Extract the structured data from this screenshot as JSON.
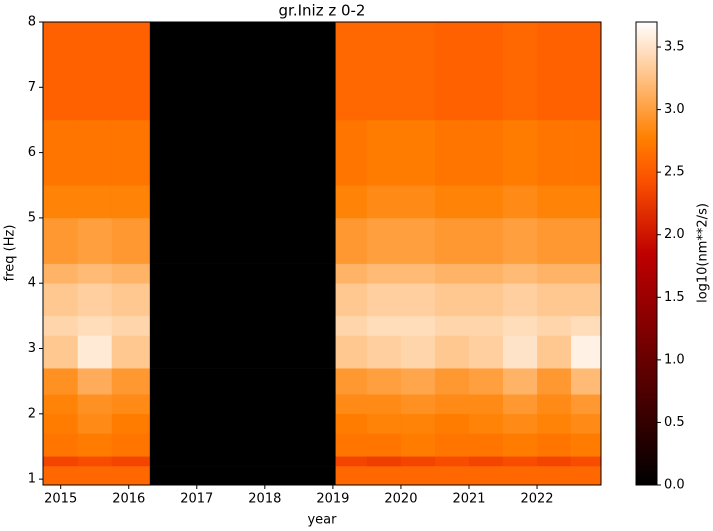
{
  "chart_data": {
    "type": "heatmap",
    "title": "gr.Iniz z 0-2",
    "x_label": "year",
    "y_label": "freq (Hz)",
    "colorbar_label": "log10(nm**2/s)",
    "colormap": "gist_heat",
    "x_edges": [
      2014.74,
      2015.25,
      2015.75,
      2016.31,
      2019.04,
      2019.5,
      2020,
      2020.5,
      2021,
      2021.5,
      2022,
      2022.5,
      2022.94
    ],
    "y_edges": [
      0.91,
      1.2,
      1.35,
      1.7,
      2.0,
      2.3,
      2.7,
      3.2,
      3.5,
      4.0,
      4.3,
      5.0,
      5.5,
      6.5,
      8
    ],
    "values": [
      [
        2.6,
        2.6,
        2.6,
        0,
        2.6,
        2.6,
        2.6,
        2.6,
        2.6,
        2.6,
        2.6,
        2.6
      ],
      [
        2.35,
        2.4,
        2.35,
        0,
        2.35,
        2.3,
        2.35,
        2.4,
        2.35,
        2.4,
        2.35,
        2.4
      ],
      [
        2.7,
        2.75,
        2.7,
        0,
        2.7,
        2.7,
        2.75,
        2.7,
        2.7,
        2.75,
        2.7,
        2.75
      ],
      [
        2.75,
        2.85,
        2.75,
        0,
        2.75,
        2.8,
        2.8,
        2.75,
        2.8,
        2.85,
        2.8,
        2.85
      ],
      [
        2.8,
        2.9,
        2.85,
        0,
        2.85,
        2.85,
        2.9,
        2.85,
        2.85,
        2.95,
        2.85,
        2.95
      ],
      [
        2.9,
        3.1,
        2.95,
        0,
        2.95,
        3.0,
        3.05,
        2.95,
        3.0,
        3.15,
        2.95,
        3.2
      ],
      [
        3.3,
        3.55,
        3.3,
        0,
        3.3,
        3.35,
        3.4,
        3.3,
        3.35,
        3.5,
        3.3,
        3.6
      ],
      [
        3.4,
        3.45,
        3.4,
        0,
        3.4,
        3.45,
        3.45,
        3.4,
        3.4,
        3.45,
        3.4,
        3.45
      ],
      [
        3.3,
        3.35,
        3.3,
        0,
        3.3,
        3.35,
        3.35,
        3.3,
        3.3,
        3.35,
        3.3,
        3.3
      ],
      [
        3.15,
        3.2,
        3.15,
        0,
        3.15,
        3.2,
        3.2,
        3.15,
        3.15,
        3.2,
        3.15,
        3.15
      ],
      [
        2.95,
        3.0,
        2.95,
        0,
        2.95,
        3.0,
        3.0,
        2.95,
        2.95,
        3.0,
        2.95,
        2.95
      ],
      [
        2.8,
        2.8,
        2.8,
        0,
        2.8,
        2.85,
        2.85,
        2.8,
        2.8,
        2.85,
        2.8,
        2.8
      ],
      [
        2.7,
        2.7,
        2.7,
        0,
        2.7,
        2.75,
        2.75,
        2.7,
        2.7,
        2.75,
        2.7,
        2.7
      ],
      [
        2.55,
        2.55,
        2.55,
        0,
        2.6,
        2.6,
        2.6,
        2.55,
        2.55,
        2.6,
        2.55,
        2.55
      ]
    ],
    "xlim": [
      2014.74,
      2022.94
    ],
    "xticks": [
      2015,
      2016,
      2017,
      2018,
      2019,
      2020,
      2021,
      2022
    ],
    "ylim": [
      0.91,
      8
    ],
    "yticks": [
      1,
      2,
      3,
      4,
      5,
      6,
      7,
      8
    ],
    "vlim": [
      0,
      3.7
    ],
    "cticks": [
      {
        "value": 0,
        "label": "0.0"
      },
      0.5,
      {
        "value": 1,
        "label": "1.0"
      },
      1.5,
      {
        "value": 2,
        "label": "2.0"
      },
      2.5,
      {
        "value": 3,
        "label": "3.0"
      },
      3.5
    ]
  }
}
